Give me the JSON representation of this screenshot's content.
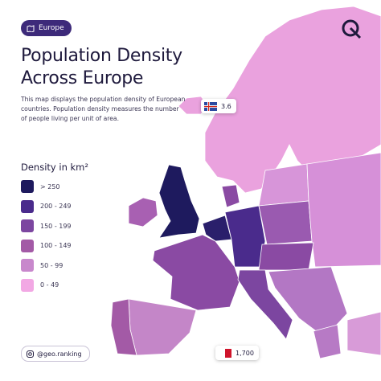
{
  "header": {
    "tag": "Europe",
    "title": "Population Density Across Europe",
    "description": "This map displays the population density of European countries. Population density measures the number of people living per unit of area."
  },
  "legend": {
    "title": "Density in km²",
    "items": [
      "> 250",
      "200 - 249",
      "150 - 199",
      "100 - 149",
      "50 - 99",
      "0 - 49"
    ]
  },
  "callouts": [
    {
      "label": "3.6"
    },
    {
      "label": "1,700"
    }
  ],
  "footer": {
    "handle": "@geo.ranking"
  }
}
